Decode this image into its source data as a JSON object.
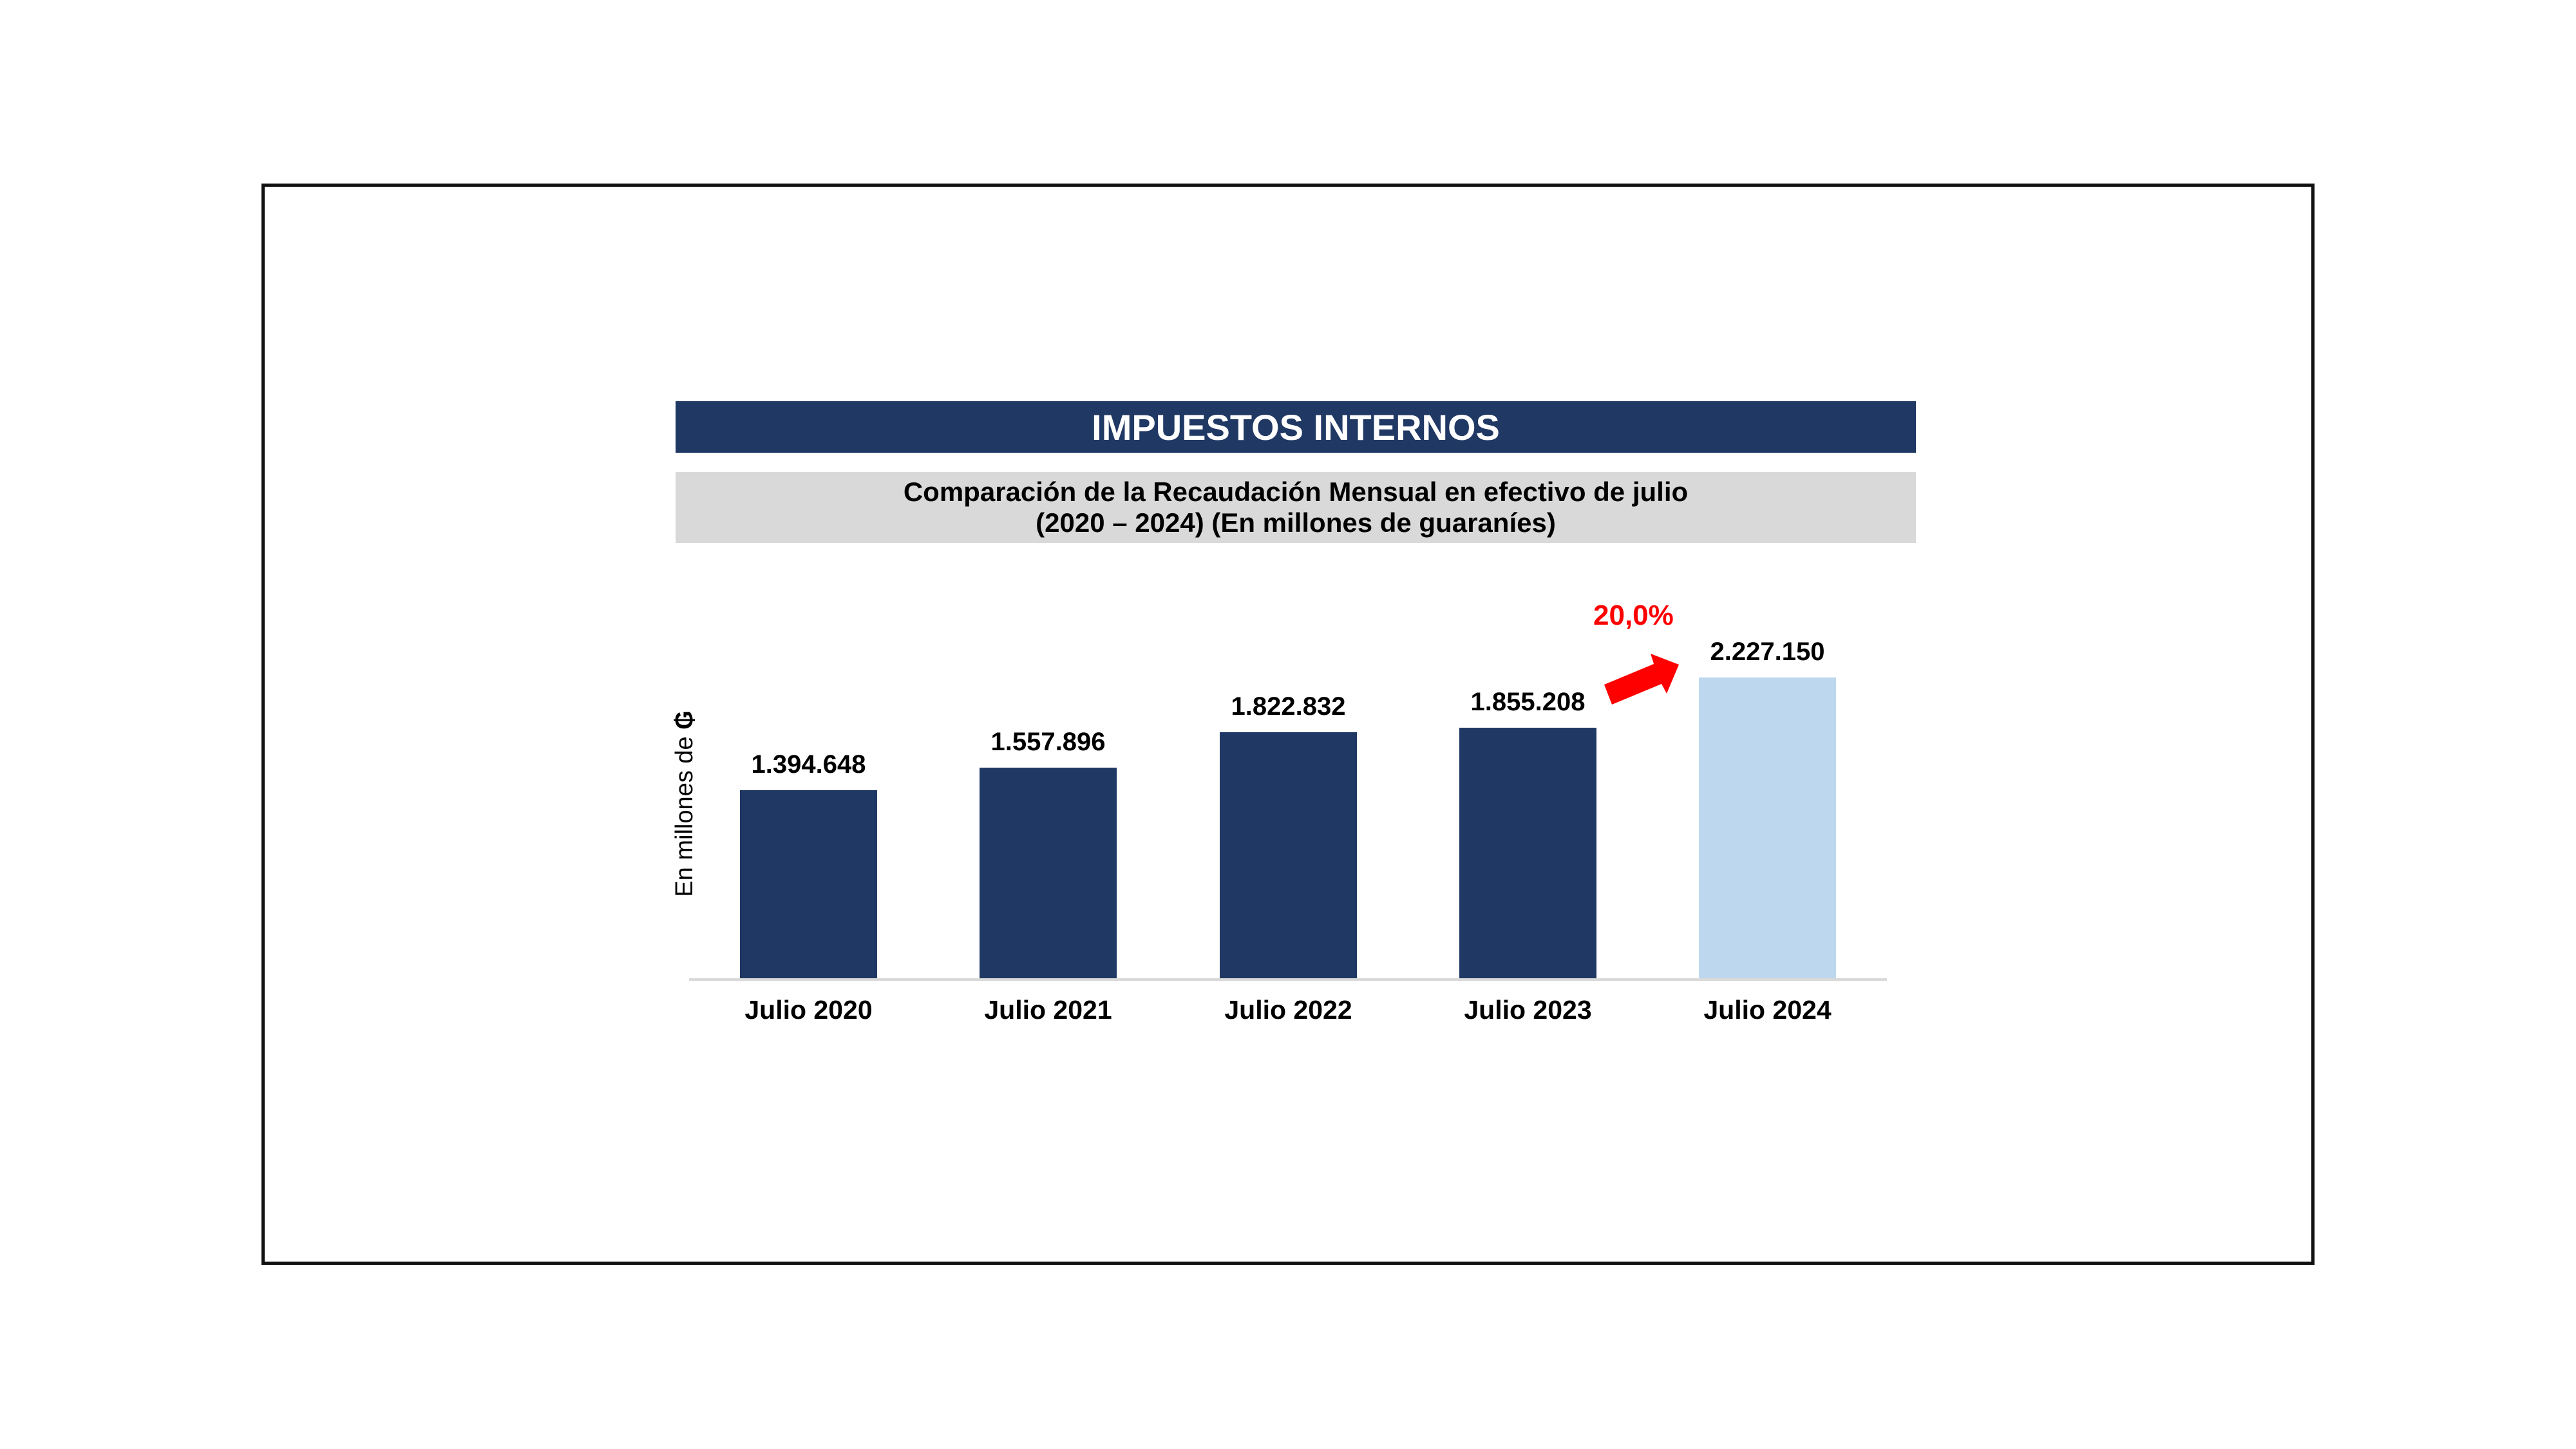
{
  "header": {
    "title": "IMPUESTOS INTERNOS",
    "subtitle_line1": "Comparación de la Recaudación Mensual en efectivo de julio",
    "subtitle_line2": "(2020 – 2024) (En millones de guaraníes)"
  },
  "axis": {
    "ylabel_text": "En millones de ",
    "ylabel_currency": "₲"
  },
  "annotation": {
    "growth_pct": "20,0%",
    "growth_arrow_icon": "arrow-up-right-icon"
  },
  "bars": [
    {
      "category": "Julio 2020",
      "label": "1.394.648",
      "value": 1394648,
      "color": "#203864"
    },
    {
      "category": "Julio 2021",
      "label": "1.557.896",
      "value": 1557896,
      "color": "#203864"
    },
    {
      "category": "Julio 2022",
      "label": "1.822.832",
      "value": 1822832,
      "color": "#203864"
    },
    {
      "category": "Julio 2023",
      "label": "1.855.208",
      "value": 1855208,
      "color": "#203864"
    },
    {
      "category": "Julio 2024",
      "label": "2.227.150",
      "value": 2227150,
      "color": "#BDD7EE"
    }
  ],
  "colors": {
    "title_bar": "#203864",
    "subtitle_bar": "#D9D9D9",
    "highlight_bar": "#BDD7EE",
    "annotation": "#FF0000"
  },
  "chart_data": {
    "type": "bar",
    "title": "IMPUESTOS INTERNOS",
    "subtitle": "Comparación de la Recaudación Mensual en efectivo de julio (2020 – 2024) (En millones de guaraníes)",
    "categories": [
      "Julio 2020",
      "Julio 2021",
      "Julio 2022",
      "Julio 2023",
      "Julio 2024"
    ],
    "values": [
      1394648,
      1557896,
      1822832,
      1855208,
      2227150
    ],
    "data_labels": [
      "1.394.648",
      "1.557.896",
      "1.822.832",
      "1.855.208",
      "2.227.150"
    ],
    "xlabel": "",
    "ylabel": "En millones de ₲",
    "ylim": [
      0,
      2227150
    ],
    "grid": false,
    "legend": null,
    "annotations": [
      {
        "text": "20,0%",
        "type": "growth",
        "from": "Julio 2023",
        "to": "Julio 2024",
        "color": "#FF0000"
      }
    ],
    "bar_colors": [
      "#203864",
      "#203864",
      "#203864",
      "#203864",
      "#BDD7EE"
    ]
  }
}
